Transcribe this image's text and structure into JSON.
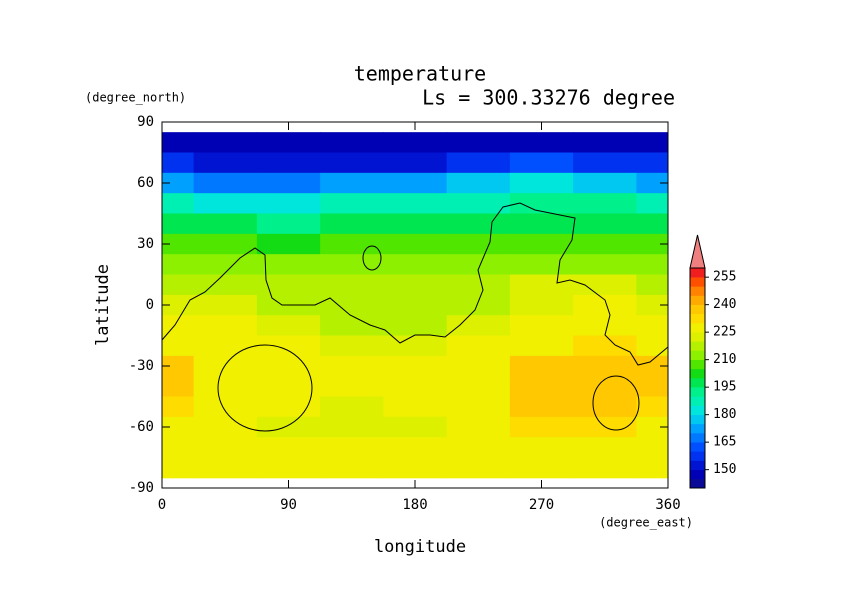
{
  "chart_data": {
    "type": "contour",
    "title": "temperature",
    "subtitle": "Ls = 300.33276 degree",
    "x_label": "longitude",
    "y_label": "latitude",
    "x_units": "(degree_east)",
    "y_units": "(degree_north)",
    "xlim": [
      0,
      360
    ],
    "ylim": [
      -90,
      90
    ],
    "xticks": [
      0,
      90,
      180,
      270,
      360
    ],
    "yticks": [
      -90,
      -60,
      -30,
      0,
      30,
      60,
      90
    ],
    "x": [
      0,
      45,
      90,
      135,
      180,
      225,
      270,
      315,
      360
    ],
    "y": [
      80,
      70,
      60,
      50,
      40,
      30,
      20,
      10,
      0,
      -10,
      -20,
      -30,
      -40,
      -50,
      -60,
      -70,
      -80
    ],
    "z": [
      [
        145,
        145,
        145,
        145,
        145,
        145,
        145,
        145,
        145
      ],
      [
        155,
        152,
        150,
        152,
        152,
        155,
        160,
        158,
        155
      ],
      [
        172,
        168,
        165,
        170,
        170,
        175,
        180,
        178,
        172
      ],
      [
        185,
        182,
        180,
        185,
        185,
        188,
        190,
        190,
        185
      ],
      [
        195,
        195,
        193,
        195,
        195,
        197,
        198,
        198,
        195
      ],
      [
        205,
        205,
        203,
        205,
        205,
        205,
        205,
        205,
        205
      ],
      [
        212,
        210,
        210,
        210,
        210,
        210,
        212,
        212,
        212
      ],
      [
        218,
        216,
        215,
        215,
        215,
        215,
        220,
        220,
        218
      ],
      [
        222,
        222,
        218,
        215,
        215,
        218,
        222,
        225,
        222
      ],
      [
        225,
        225,
        220,
        215,
        215,
        220,
        225,
        225,
        225
      ],
      [
        228,
        228,
        225,
        222,
        222,
        225,
        228,
        230,
        228
      ],
      [
        235,
        228,
        228,
        225,
        225,
        226,
        235,
        238,
        235
      ],
      [
        235,
        228,
        227,
        225,
        225,
        226,
        236,
        237,
        235
      ],
      [
        233,
        228,
        225,
        222,
        225,
        226,
        235,
        235,
        233
      ],
      [
        228,
        228,
        222,
        220,
        222,
        225,
        230,
        232,
        228
      ],
      [
        227,
        227,
        226,
        225,
        226,
        227,
        228,
        228,
        227
      ],
      [
        227,
        227,
        227,
        227,
        227,
        227,
        227,
        227,
        227
      ]
    ],
    "colorbar": {
      "levels": [
        140,
        145,
        150,
        155,
        160,
        165,
        170,
        175,
        180,
        185,
        190,
        195,
        200,
        205,
        210,
        215,
        220,
        225,
        230,
        235,
        240,
        245,
        250,
        255,
        260
      ],
      "colors": [
        "#0a0a96",
        "#0000b4",
        "#0014d2",
        "#0032f0",
        "#0050ff",
        "#0078ff",
        "#00a0ff",
        "#00c8f0",
        "#00e6dc",
        "#00f0b4",
        "#00f08c",
        "#00e650",
        "#14dc14",
        "#50e600",
        "#8cf000",
        "#b4f000",
        "#dcf000",
        "#f0f000",
        "#ffdc00",
        "#ffc800",
        "#ffaa00",
        "#ff8200",
        "#ff5000",
        "#f01e1e"
      ],
      "extend_color": "#f08080",
      "ticks": [
        150,
        165,
        180,
        195,
        210,
        225,
        240,
        255
      ]
    }
  }
}
